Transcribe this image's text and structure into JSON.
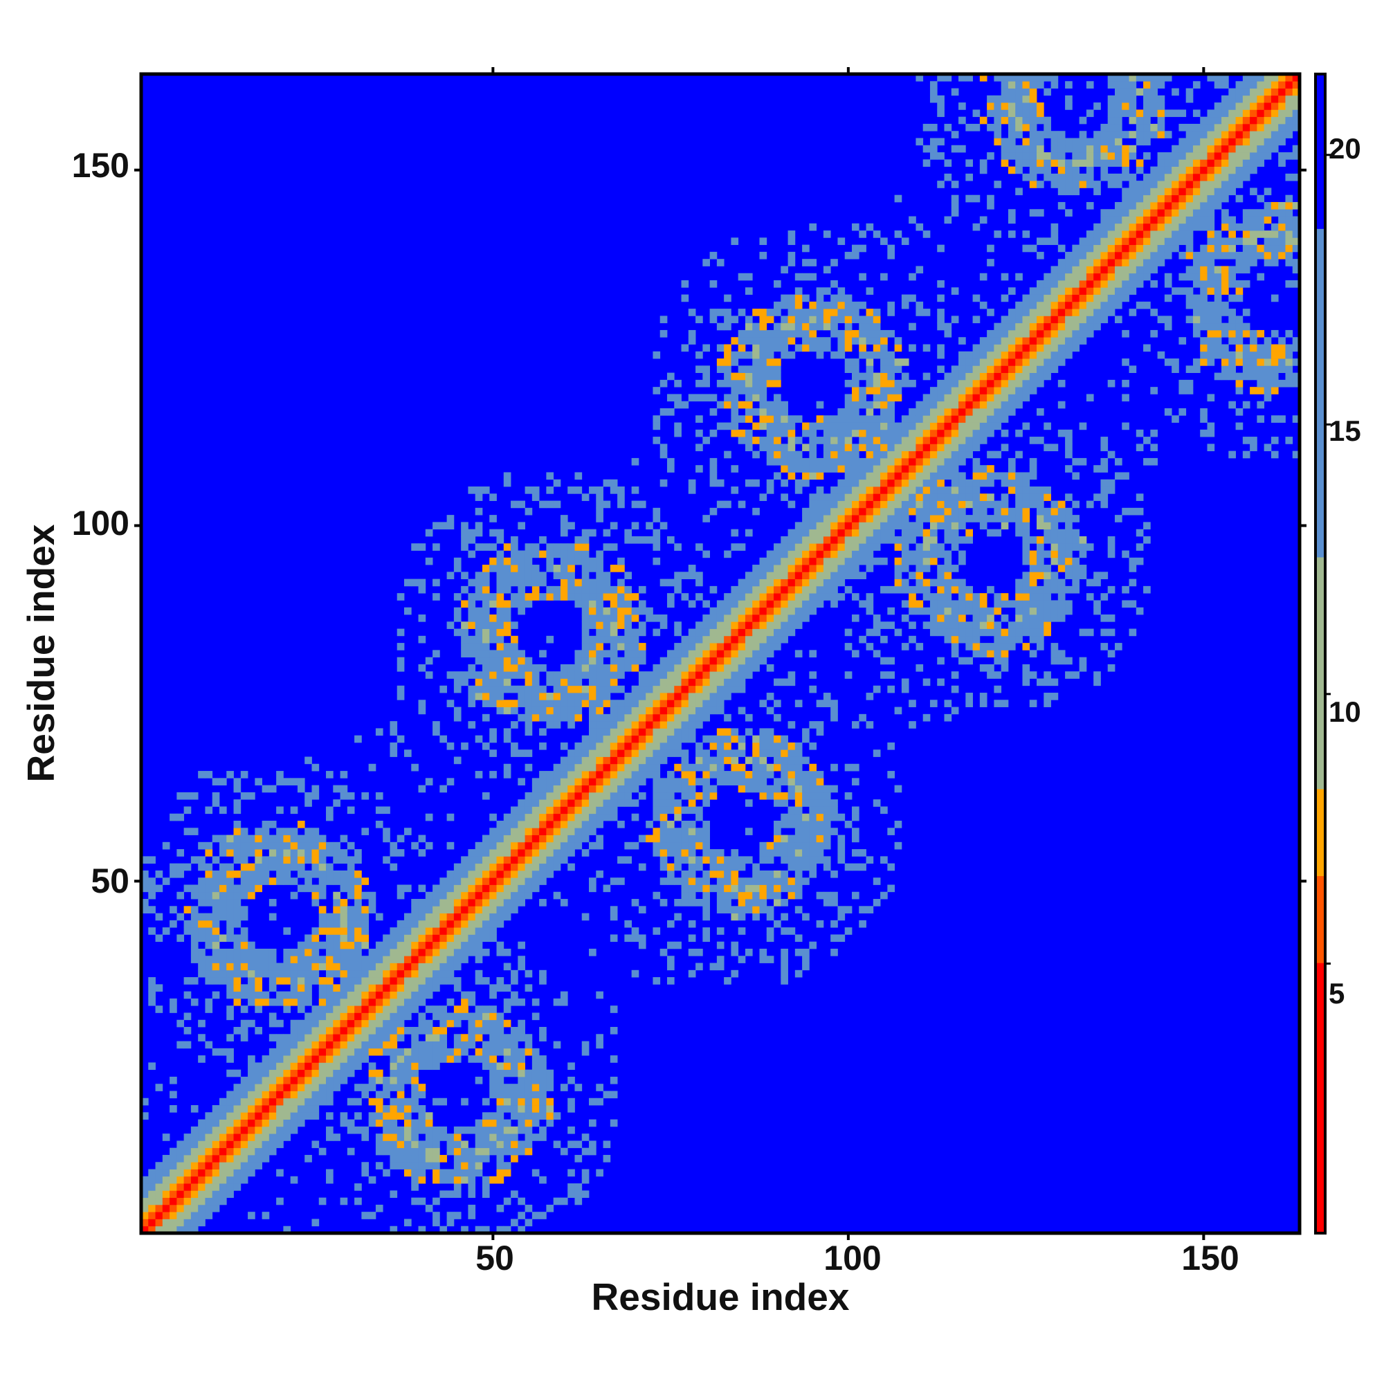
{
  "chart_data": {
    "type": "heatmap",
    "title": "",
    "xlabel": "Residue index",
    "ylabel": "Residue index",
    "xlim": [
      1,
      163
    ],
    "ylim": [
      1,
      163
    ],
    "x_ticks": [
      50,
      100,
      150
    ],
    "y_ticks": [
      50,
      100,
      150
    ],
    "x_tick_labels": [
      "50",
      "100",
      "150"
    ],
    "y_tick_labels": [
      "50",
      "100",
      "150"
    ],
    "colorbar": {
      "range": [
        0,
        21.5
      ],
      "ticks": [
        5,
        10,
        15,
        20
      ],
      "tick_labels": [
        "5",
        "10",
        "15",
        "20"
      ],
      "position": "right"
    },
    "n_residues": 163,
    "diagonal_value": 3.8,
    "background_value": 21,
    "contact_structures": [
      {
        "kind": "parallel_band",
        "offset": 0,
        "half_width": 7,
        "center_value": 3.8
      },
      {
        "kind": "ring",
        "center": [
          20,
          45
        ],
        "radius": 9,
        "value": 12
      },
      {
        "kind": "ring",
        "center": [
          45,
          20
        ],
        "radius": 9,
        "value": 12
      },
      {
        "kind": "ring",
        "center": [
          58,
          85
        ],
        "radius": 9,
        "value": 12
      },
      {
        "kind": "ring",
        "center": [
          85,
          58
        ],
        "radius": 9,
        "value": 12
      },
      {
        "kind": "ring",
        "center": [
          95,
          120
        ],
        "radius": 9,
        "value": 12
      },
      {
        "kind": "ring",
        "center": [
          120,
          95
        ],
        "radius": 9,
        "value": 12
      },
      {
        "kind": "ring",
        "center": [
          132,
          160
        ],
        "radius": 9,
        "value": 12
      },
      {
        "kind": "ring",
        "center": [
          160,
          132
        ],
        "radius": 9,
        "value": 12
      }
    ],
    "colors": {
      "low": "#ff0000",
      "mid_low": "#ff5500",
      "mid": "#ffa500",
      "mid_high": "#a0b890",
      "high": "#5a8fd0",
      "background": "#0000ff"
    }
  }
}
